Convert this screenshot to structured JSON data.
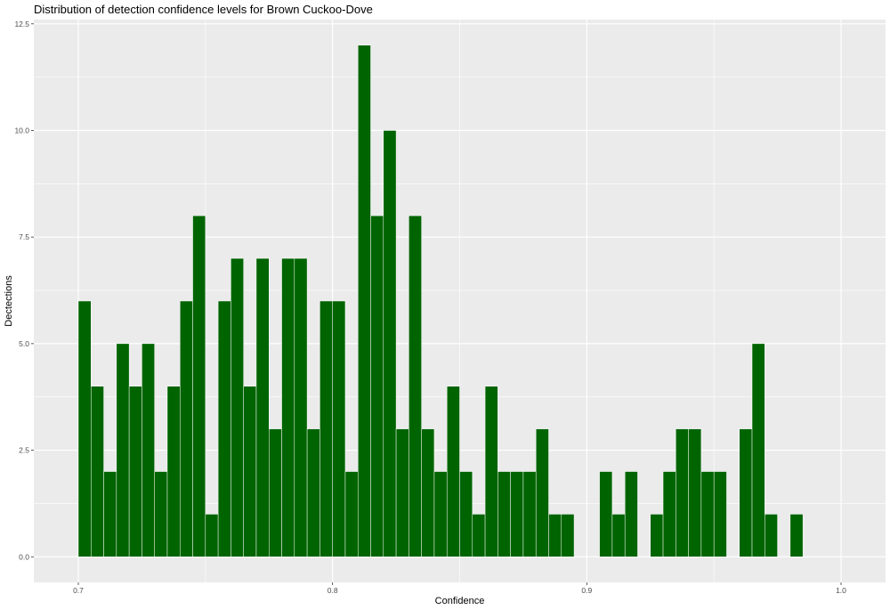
{
  "chart_data": {
    "type": "bar",
    "title": "Distribution of detection confidence levels for Brown Cuckoo-Dove",
    "xlabel": "Confidence",
    "ylabel": "Dectections",
    "xlim": [
      0.6825,
      1.0175
    ],
    "ylim": [
      -0.6,
      12.6
    ],
    "bin_width": 0.005,
    "x_ticks": [
      {
        "value": 0.7,
        "label": "0.7"
      },
      {
        "value": 0.8,
        "label": "0.8"
      },
      {
        "value": 0.9,
        "label": "0.9"
      },
      {
        "value": 1.0,
        "label": "1.0"
      }
    ],
    "y_ticks": [
      {
        "value": 0,
        "label": "0.0"
      },
      {
        "value": 2.5,
        "label": "2.5"
      },
      {
        "value": 5,
        "label": "5.0"
      },
      {
        "value": 7.5,
        "label": "7.5"
      },
      {
        "value": 10,
        "label": "10.0"
      },
      {
        "value": 12.5,
        "label": "12.5"
      }
    ],
    "x": [
      0.7025,
      0.7075,
      0.7125,
      0.7175,
      0.7225,
      0.7275,
      0.7325,
      0.7375,
      0.7425,
      0.7475,
      0.7525,
      0.7575,
      0.7625,
      0.7675,
      0.7725,
      0.7775,
      0.7825,
      0.7875,
      0.7925,
      0.7975,
      0.8025,
      0.8075,
      0.8125,
      0.8175,
      0.8225,
      0.8275,
      0.8325,
      0.8375,
      0.8425,
      0.8475,
      0.8525,
      0.8575,
      0.8625,
      0.8675,
      0.8725,
      0.8775,
      0.8825,
      0.8875,
      0.8925,
      0.8975,
      0.9025,
      0.9075,
      0.9125,
      0.9175,
      0.9225,
      0.9275,
      0.9325,
      0.9375,
      0.9425,
      0.9475,
      0.9525,
      0.9575,
      0.9625,
      0.9675,
      0.9725,
      0.9775,
      0.9825
    ],
    "values": [
      6,
      4,
      2,
      5,
      4,
      5,
      2,
      4,
      6,
      8,
      1,
      6,
      7,
      4,
      7,
      3,
      7,
      7,
      3,
      6,
      6,
      2,
      12,
      8,
      10,
      3,
      8,
      3,
      2,
      4,
      2,
      1,
      4,
      2,
      2,
      2,
      3,
      1,
      1,
      0,
      0,
      2,
      1,
      2,
      0,
      1,
      2,
      3,
      3,
      2,
      2,
      0,
      3,
      5,
      1,
      0,
      1
    ],
    "bar_color": "#006400",
    "bar_outline": "#ffffff",
    "panel_background": "#ebebeb",
    "grid": true,
    "legend": "none"
  }
}
